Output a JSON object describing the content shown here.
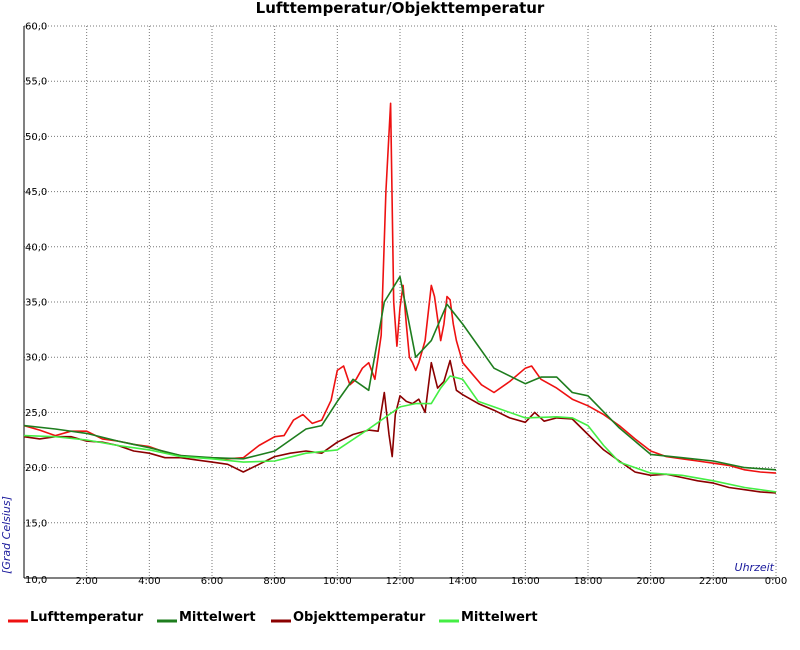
{
  "chart_data": {
    "type": "line",
    "title": "Lufttemperatur/Objekttemperatur",
    "xlabel": "Uhrzeit",
    "ylabel": "[Grad Celsius]",
    "ylim": [
      10,
      60
    ],
    "xlim": [
      0,
      24
    ],
    "grid": true,
    "legend_placement": "bottom",
    "y_ticks": [
      "10,0",
      "15,0",
      "20,0",
      "25,0",
      "30,0",
      "35,0",
      "40,0",
      "45,0",
      "50,0",
      "55,0",
      "60,0"
    ],
    "x_ticks": [
      "2:00",
      "4:00",
      "6:00",
      "8:00",
      "10:00",
      "12:00",
      "14:00",
      "16:00",
      "18:00",
      "20:00",
      "22:00",
      "0:00"
    ],
    "series": [
      {
        "name": "Lufttemperatur",
        "color": "#ee1111",
        "x": [
          0,
          0.5,
          1,
          1.5,
          2,
          2.5,
          3,
          3.5,
          4,
          4.5,
          5,
          5.5,
          6,
          6.5,
          7,
          7.5,
          8,
          8.3,
          8.6,
          8.9,
          9.2,
          9.5,
          9.8,
          10.0,
          10.2,
          10.4,
          10.6,
          10.8,
          11.0,
          11.2,
          11.4,
          11.55,
          11.7,
          11.8,
          11.9,
          12.0,
          12.1,
          12.2,
          12.3,
          12.4,
          12.5,
          12.6,
          12.8,
          13.0,
          13.1,
          13.2,
          13.3,
          13.4,
          13.5,
          13.6,
          13.7,
          13.8,
          14.0,
          14.3,
          14.6,
          15.0,
          15.5,
          16.0,
          16.2,
          16.5,
          17.0,
          17.5,
          18.0,
          18.5,
          19.0,
          19.5,
          20.0,
          20.5,
          21.0,
          21.5,
          22.0,
          22.5,
          23.0,
          23.5,
          24.0
        ],
        "values": [
          23.8,
          23.4,
          22.9,
          23.3,
          23.3,
          22.6,
          22.4,
          22.1,
          21.9,
          21.4,
          21.1,
          20.9,
          20.9,
          20.8,
          20.9,
          22.0,
          22.8,
          22.9,
          24.3,
          24.8,
          24.0,
          24.3,
          26.1,
          28.8,
          29.2,
          27.5,
          28.0,
          29.0,
          29.5,
          28.0,
          32.0,
          45.0,
          53.0,
          35.0,
          31.0,
          34.5,
          36.5,
          33.0,
          30.0,
          29.5,
          28.8,
          29.5,
          31.5,
          36.5,
          35.5,
          33.5,
          31.5,
          33.0,
          35.5,
          35.2,
          33.0,
          31.5,
          29.5,
          28.5,
          27.5,
          26.8,
          27.8,
          29.0,
          29.2,
          28.0,
          27.2,
          26.2,
          25.6,
          24.8,
          23.8,
          22.6,
          21.5,
          21.0,
          20.8,
          20.6,
          20.4,
          20.2,
          19.8,
          19.6,
          19.5
        ]
      },
      {
        "name": "Mittelwert",
        "color": "#1e7d1e",
        "x": [
          0,
          1,
          2,
          3,
          4,
          5,
          6,
          7,
          8,
          9,
          9.5,
          10,
          10.5,
          11,
          11.5,
          12.0,
          12.5,
          13.0,
          13.5,
          14.0,
          15.0,
          16.0,
          16.5,
          17.0,
          17.5,
          18.0,
          19.0,
          20.0,
          21.0,
          22.0,
          23.0,
          24.0
        ],
        "values": [
          23.8,
          23.5,
          23.1,
          22.4,
          21.8,
          21.1,
          20.9,
          20.8,
          21.5,
          23.5,
          23.8,
          26.0,
          28.0,
          27.0,
          35.0,
          37.3,
          30.0,
          31.5,
          34.8,
          33.0,
          29.0,
          27.6,
          28.2,
          28.2,
          26.8,
          26.5,
          23.6,
          21.2,
          20.9,
          20.6,
          20.0,
          19.8
        ]
      },
      {
        "name": "Objekttemperatur",
        "color": "#8b0000",
        "x": [
          0,
          0.5,
          1,
          1.5,
          2,
          2.5,
          3,
          3.5,
          4,
          4.5,
          5,
          5.5,
          6,
          6.5,
          7,
          7.5,
          8,
          8.5,
          9,
          9.5,
          10,
          10.5,
          11,
          11.3,
          11.5,
          11.65,
          11.75,
          11.85,
          12.0,
          12.2,
          12.4,
          12.6,
          12.8,
          13.0,
          13.2,
          13.4,
          13.6,
          13.8,
          14.0,
          14.5,
          15.0,
          15.5,
          16.0,
          16.3,
          16.6,
          17.0,
          17.5,
          18.0,
          18.5,
          19.0,
          19.5,
          20.0,
          20.5,
          21.0,
          21.5,
          22.0,
          22.5,
          23.0,
          23.5,
          24.0
        ],
        "values": [
          22.8,
          22.6,
          22.8,
          22.8,
          22.4,
          22.3,
          22.0,
          21.5,
          21.3,
          20.9,
          20.9,
          20.7,
          20.5,
          20.3,
          19.6,
          20.3,
          21.0,
          21.3,
          21.5,
          21.3,
          22.3,
          23.0,
          23.4,
          23.3,
          26.8,
          23.0,
          21.0,
          24.8,
          26.5,
          26.0,
          25.8,
          26.2,
          25.0,
          29.5,
          27.2,
          27.8,
          29.7,
          27.0,
          26.6,
          25.8,
          25.2,
          24.5,
          24.1,
          25.0,
          24.2,
          24.5,
          24.4,
          23.0,
          21.6,
          20.6,
          19.6,
          19.3,
          19.4,
          19.1,
          18.8,
          18.6,
          18.2,
          18.0,
          17.8,
          17.7
        ]
      },
      {
        "name": "Mittelwert",
        "color": "#44ee44",
        "x": [
          0,
          1,
          2,
          3,
          4,
          5,
          6,
          7,
          8,
          9,
          10,
          11,
          12,
          12.5,
          13.0,
          13.3,
          13.6,
          14.0,
          14.5,
          15,
          16,
          17,
          17.5,
          18,
          18.5,
          19,
          20,
          21,
          22,
          23,
          24
        ],
        "values": [
          22.9,
          22.8,
          22.5,
          22.0,
          21.6,
          21.0,
          20.8,
          20.5,
          20.6,
          21.3,
          21.6,
          23.5,
          25.5,
          25.8,
          25.8,
          27.2,
          28.3,
          28.0,
          26.0,
          25.5,
          24.5,
          24.6,
          24.5,
          23.8,
          22.0,
          20.5,
          19.5,
          19.3,
          18.8,
          18.2,
          17.8
        ]
      }
    ]
  }
}
